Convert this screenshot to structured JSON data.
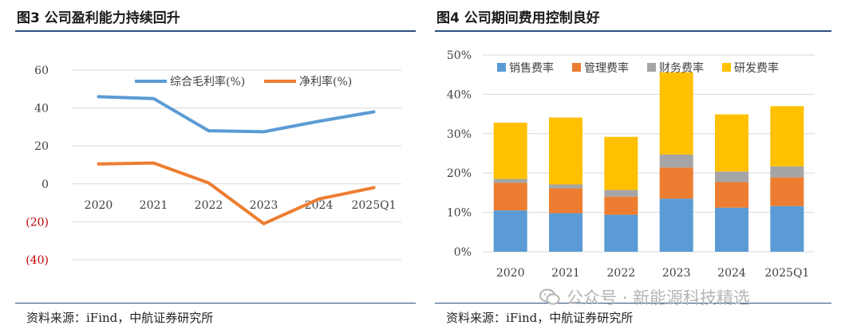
{
  "left": {
    "title": "图3  公司盈利能力持续回升",
    "source": "资料来源：iFind，中航证券研究所"
  },
  "right": {
    "title": "图4  公司期间费用控制良好",
    "source": "资料来源：iFind，中航证券研究所"
  },
  "watermark": {
    "text": "公众号 · 新能源科技精选",
    "icon": "wechat-icon"
  },
  "chart_data": [
    {
      "type": "line",
      "categories": [
        "2020",
        "2021",
        "2022",
        "2023",
        "2024",
        "2025Q1"
      ],
      "yticks": [
        "60",
        "40",
        "20",
        "0",
        "(20)",
        "(40)"
      ],
      "ytick_values": [
        60,
        40,
        20,
        0,
        -20,
        -40
      ],
      "ylim": [
        -40,
        60
      ],
      "negative_tick_color": "#c00000",
      "grid": true,
      "legend_position": "top",
      "series": [
        {
          "name": "综合毛利率(%)",
          "color": "#5b9bd5",
          "values": [
            46,
            45,
            28,
            27.5,
            33,
            38
          ]
        },
        {
          "name": "净利率(%)",
          "color": "#ed7d31",
          "values": [
            10.5,
            11,
            0.5,
            -21,
            -8,
            -2
          ]
        }
      ]
    },
    {
      "type": "bar",
      "stacked": true,
      "categories": [
        "2020",
        "2021",
        "2022",
        "2023",
        "2024",
        "2025Q1"
      ],
      "yticks": [
        "50%",
        "40%",
        "30%",
        "20%",
        "10%",
        "0%"
      ],
      "ytick_values": [
        50,
        40,
        30,
        20,
        10,
        0
      ],
      "ylim": [
        0,
        50
      ],
      "grid": true,
      "legend_position": "top",
      "series": [
        {
          "name": "销售费率",
          "color": "#5b9bd5",
          "values": [
            10.5,
            9.8,
            9.4,
            13.5,
            11.2,
            11.6
          ]
        },
        {
          "name": "管理费率",
          "color": "#ed7d31",
          "values": [
            7,
            6.3,
            4.6,
            7.9,
            6.5,
            7.3
          ]
        },
        {
          "name": "财务费率",
          "color": "#a5a5a5",
          "values": [
            1,
            1,
            1.7,
            3.3,
            2.7,
            2.8
          ]
        },
        {
          "name": "研发费率",
          "color": "#ffc000",
          "values": [
            14.3,
            17,
            13.5,
            20.9,
            14.5,
            15.3
          ]
        }
      ]
    }
  ]
}
